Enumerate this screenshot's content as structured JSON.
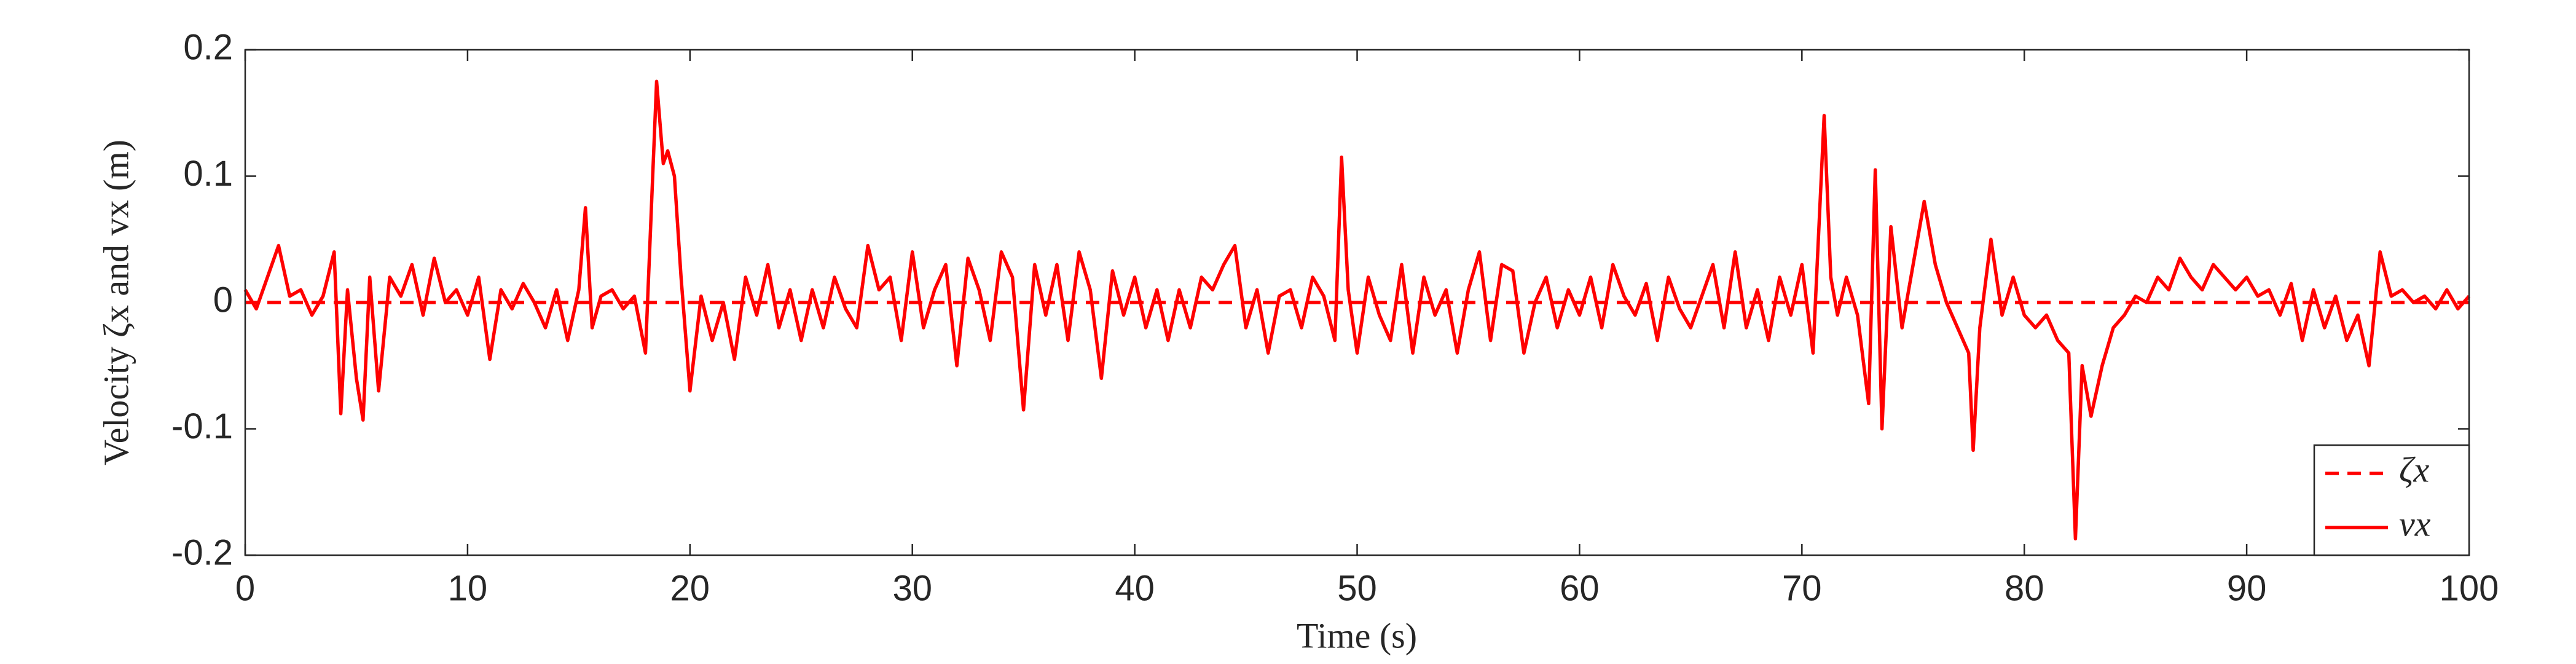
{
  "chart_data": {
    "type": "line",
    "xlabel": "Time (s)",
    "ylabel": "Velocity ζx and vx (m)",
    "xlim": [
      0,
      100
    ],
    "ylim": [
      -0.2,
      0.2
    ],
    "xticks": [
      0,
      10,
      20,
      30,
      40,
      50,
      60,
      70,
      80,
      90,
      100
    ],
    "yticks": [
      -0.2,
      -0.1,
      0,
      0.1,
      0.2
    ],
    "legend": "lower right",
    "series": [
      {
        "name": "ζx",
        "color": "#ff0000",
        "line_style": "dashed",
        "x": [
          0,
          100
        ],
        "values": [
          0,
          0
        ]
      },
      {
        "name": "vx",
        "color": "#ff0000",
        "line_style": "solid",
        "x": [
          0,
          0.5,
          1,
          1.5,
          2,
          2.5,
          3,
          3.5,
          4,
          4.3,
          4.6,
          5,
          5.3,
          5.6,
          6,
          6.5,
          7,
          7.5,
          8,
          8.5,
          9,
          9.5,
          10,
          10.5,
          11,
          11.5,
          12,
          12.5,
          13,
          13.5,
          14,
          14.5,
          15,
          15.3,
          15.6,
          16,
          16.5,
          17,
          17.5,
          18,
          18.3,
          18.5,
          18.8,
          19,
          19.3,
          19.6,
          20,
          20.5,
          21,
          21.5,
          22,
          22.5,
          23,
          23.5,
          24,
          24.5,
          25,
          25.5,
          26,
          26.5,
          27,
          27.5,
          28,
          28.5,
          29,
          29.5,
          30,
          30.5,
          31,
          31.5,
          32,
          32.5,
          33,
          33.5,
          34,
          34.5,
          35,
          35.5,
          36,
          36.5,
          37,
          37.5,
          38,
          38.5,
          39,
          39.5,
          40,
          40.5,
          41,
          41.5,
          42,
          42.5,
          43,
          43.5,
          44,
          44.5,
          45,
          45.5,
          46,
          46.5,
          47,
          47.5,
          48,
          48.5,
          49,
          49.3,
          49.6,
          50,
          50.5,
          51,
          51.5,
          52,
          52.5,
          53,
          53.5,
          54,
          54.5,
          55,
          55.5,
          56,
          56.5,
          57,
          57.5,
          58,
          58.5,
          59,
          59.5,
          60,
          60.5,
          61,
          61.5,
          62,
          62.5,
          63,
          63.5,
          64,
          64.5,
          65,
          65.5,
          66,
          66.5,
          67,
          67.5,
          68,
          68.5,
          69,
          69.5,
          70,
          70.5,
          71,
          71.3,
          71.6,
          72,
          72.5,
          73,
          73.3,
          73.6,
          74,
          74.5,
          75,
          75.5,
          76,
          76.5,
          77,
          77.5,
          77.7,
          78,
          78.5,
          79,
          79.5,
          80,
          80.5,
          81,
          81.5,
          82,
          82.3,
          82.6,
          83,
          83.5,
          84,
          84.5,
          85,
          85.5,
          86,
          86.5,
          87,
          87.5,
          88,
          88.5,
          89,
          89.5,
          90,
          90.5,
          91,
          91.5,
          92,
          92.5,
          93,
          93.5,
          94,
          94.5,
          95,
          95.5,
          96,
          96.5,
          97,
          97.5,
          98,
          98.5,
          99,
          99.5,
          100
        ],
        "values": [
          0.01,
          -0.005,
          0.02,
          0.045,
          0.005,
          0.01,
          -0.01,
          0.005,
          0.04,
          -0.088,
          0.01,
          -0.06,
          -0.093,
          0.02,
          -0.07,
          0.02,
          0.005,
          0.03,
          -0.01,
          0.035,
          0,
          0.01,
          -0.01,
          0.02,
          -0.045,
          0.01,
          -0.005,
          0.015,
          0,
          -0.02,
          0.01,
          -0.03,
          0.01,
          0.075,
          -0.02,
          0.005,
          0.01,
          -0.005,
          0.005,
          -0.04,
          0.09,
          0.175,
          0.11,
          0.12,
          0.1,
          0.02,
          -0.07,
          0.005,
          -0.03,
          0,
          -0.045,
          0.02,
          -0.01,
          0.03,
          -0.02,
          0.01,
          -0.03,
          0.01,
          -0.02,
          0.02,
          -0.005,
          -0.02,
          0.045,
          0.01,
          0.02,
          -0.03,
          0.04,
          -0.02,
          0.01,
          0.03,
          -0.05,
          0.035,
          0.01,
          -0.03,
          0.04,
          0.02,
          -0.085,
          0.03,
          -0.01,
          0.03,
          -0.03,
          0.04,
          0.01,
          -0.06,
          0.025,
          -0.01,
          0.02,
          -0.02,
          0.01,
          -0.03,
          0.01,
          -0.02,
          0.02,
          0.01,
          0.03,
          0.045,
          -0.02,
          0.01,
          -0.04,
          0.005,
          0.01,
          -0.02,
          0.02,
          0.005,
          -0.03,
          0.115,
          0.01,
          -0.04,
          0.02,
          -0.01,
          -0.03,
          0.03,
          -0.04,
          0.02,
          -0.01,
          0.01,
          -0.04,
          0.01,
          0.04,
          -0.03,
          0.03,
          0.025,
          -0.04,
          0,
          0.02,
          -0.02,
          0.01,
          -0.01,
          0.02,
          -0.02,
          0.03,
          0.005,
          -0.01,
          0.015,
          -0.03,
          0.02,
          -0.005,
          -0.02,
          0.005,
          0.03,
          -0.02,
          0.04,
          -0.02,
          0.01,
          -0.03,
          0.02,
          -0.01,
          0.03,
          -0.04,
          0.148,
          0.02,
          -0.01,
          0.02,
          -0.01,
          -0.08,
          0.105,
          -0.1,
          0.06,
          -0.02,
          0.03,
          0.08,
          0.03,
          0,
          -0.02,
          -0.04,
          -0.117,
          -0.02,
          0.05,
          -0.01,
          0.02,
          -0.01,
          -0.02,
          -0.01,
          -0.03,
          -0.04,
          -0.187,
          -0.05,
          -0.09,
          -0.05,
          -0.02,
          -0.01,
          0.005,
          0,
          0.02,
          0.01,
          0.035,
          0.02,
          0.01,
          0.03,
          0.02,
          0.01,
          0.02,
          0.005,
          0.01,
          -0.01,
          0.015,
          -0.03,
          0.01,
          -0.02,
          0.005,
          -0.03,
          -0.01,
          -0.05,
          0.04,
          0.005,
          0.01,
          0,
          0.005,
          -0.005,
          0.01,
          -0.005,
          0.005
        ]
      }
    ]
  }
}
